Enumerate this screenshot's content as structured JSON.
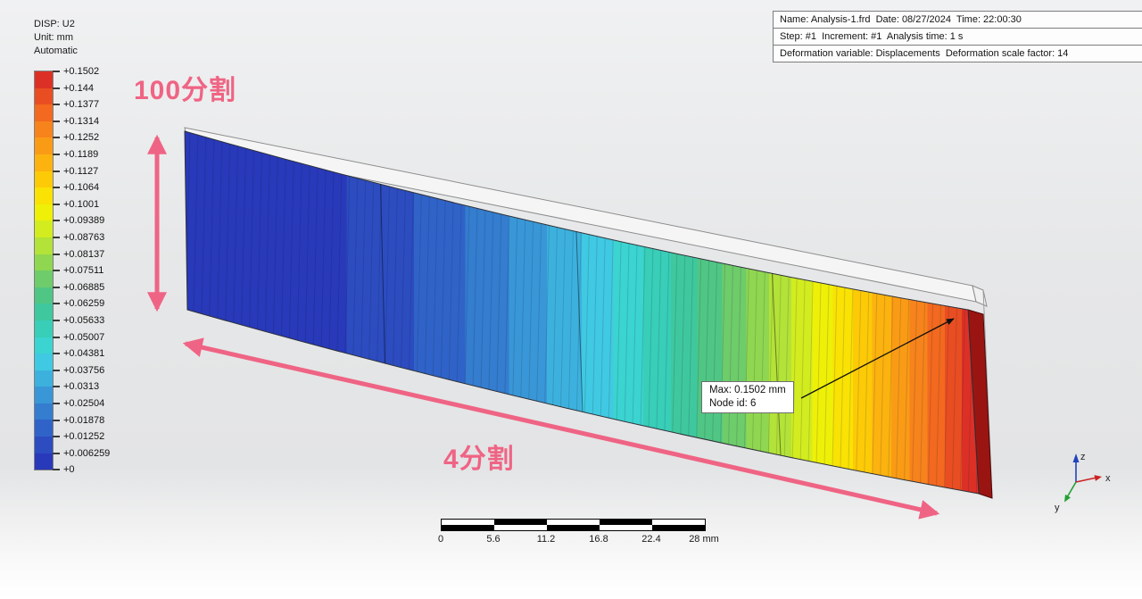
{
  "legend": {
    "field": "DISP: U2",
    "unit": "Unit: mm",
    "mode": "Automatic",
    "values": [
      "+0.1502",
      "+0.144",
      "+0.1377",
      "+0.1314",
      "+0.1252",
      "+0.1189",
      "+0.1127",
      "+0.1064",
      "+0.1001",
      "+0.09389",
      "+0.08763",
      "+0.08137",
      "+0.07511",
      "+0.06885",
      "+0.06259",
      "+0.05633",
      "+0.05007",
      "+0.04381",
      "+0.03756",
      "+0.0313",
      "+0.02504",
      "+0.01878",
      "+0.01252",
      "+0.006259",
      "+0"
    ],
    "band_colors": [
      "#dc3026",
      "#e84e22",
      "#f2691f",
      "#f7831c",
      "#fa9b16",
      "#fcb30f",
      "#fdca08",
      "#f9e204",
      "#eef008",
      "#d3ec1f",
      "#b3e238",
      "#90d751",
      "#6ecc6a",
      "#50c684",
      "#3fc89e",
      "#38ceb8",
      "#3bd4d0",
      "#40c9e2",
      "#3db1de",
      "#3997d7",
      "#347dcf",
      "#3063c8",
      "#2c4cc0",
      "#2839ba"
    ]
  },
  "info_box": {
    "line1": "Name: Analysis-1.frd  Date: 08/27/2024  Time: 22:00:30",
    "line2": "Step: #1  Increment: #1  Analysis time: 1 s",
    "line3": "Deformation variable: Displacements  Deformation scale factor: 14"
  },
  "annotations": {
    "vertical_label": "100分割",
    "horizontal_label": "4分割",
    "max_box": {
      "line1": "Max: 0.1502 mm",
      "line2": "Node id: 6"
    }
  },
  "scale_bar": {
    "labels": [
      "0",
      "5.6",
      "11.2",
      "16.8",
      "22.4",
      "28 mm"
    ]
  },
  "triad": {
    "x": "x",
    "y": "y",
    "z": "z"
  },
  "colors": {
    "accent_pink": "#ef6484",
    "beam_end_cap": "#9a1512"
  }
}
